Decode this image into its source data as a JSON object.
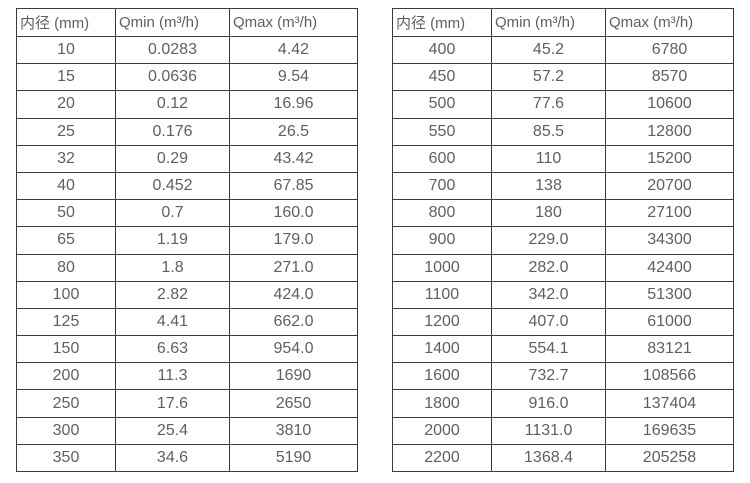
{
  "colors": {
    "background": "#ffffff",
    "border": "#3c3c3c",
    "text": "#5f5f5f"
  },
  "tables": [
    {
      "name": "flow-rates-dn10-350",
      "headers": [
        "内径 (mm)",
        "Qmin (m³/h)",
        "Qmax (m³/h)"
      ],
      "rows": [
        [
          "10",
          "0.0283",
          "4.42"
        ],
        [
          "15",
          "0.0636",
          "9.54"
        ],
        [
          "20",
          "0.12",
          "16.96"
        ],
        [
          "25",
          "0.176",
          "26.5"
        ],
        [
          "32",
          "0.29",
          "43.42"
        ],
        [
          "40",
          "0.452",
          "67.85"
        ],
        [
          "50",
          "0.7",
          "160.0"
        ],
        [
          "65",
          "1.19",
          "179.0"
        ],
        [
          "80",
          "1.8",
          "271.0"
        ],
        [
          "100",
          "2.82",
          "424.0"
        ],
        [
          "125",
          "4.41",
          "662.0"
        ],
        [
          "150",
          "6.63",
          "954.0"
        ],
        [
          "200",
          "11.3",
          "1690"
        ],
        [
          "250",
          "17.6",
          "2650"
        ],
        [
          "300",
          "25.4",
          "3810"
        ],
        [
          "350",
          "34.6",
          "5190"
        ]
      ]
    },
    {
      "name": "flow-rates-dn400-2200",
      "headers": [
        "内径 (mm)",
        "Qmin (m³/h)",
        "Qmax (m³/h)"
      ],
      "rows": [
        [
          "400",
          "45.2",
          "6780"
        ],
        [
          "450",
          "57.2",
          "8570"
        ],
        [
          "500",
          "77.6",
          "10600"
        ],
        [
          "550",
          "85.5",
          "12800"
        ],
        [
          "600",
          "110",
          "15200"
        ],
        [
          "700",
          "138",
          "20700"
        ],
        [
          "800",
          "180",
          "27100"
        ],
        [
          "900",
          "229.0",
          "34300"
        ],
        [
          "1000",
          "282.0",
          "42400"
        ],
        [
          "1100",
          "342.0",
          "51300"
        ],
        [
          "1200",
          "407.0",
          "61000"
        ],
        [
          "1400",
          "554.1",
          "83121"
        ],
        [
          "1600",
          "732.7",
          "108566"
        ],
        [
          "1800",
          "916.0",
          "137404"
        ],
        [
          "2000",
          "1131.0",
          "169635"
        ],
        [
          "2200",
          "1368.4",
          "205258"
        ]
      ]
    }
  ]
}
